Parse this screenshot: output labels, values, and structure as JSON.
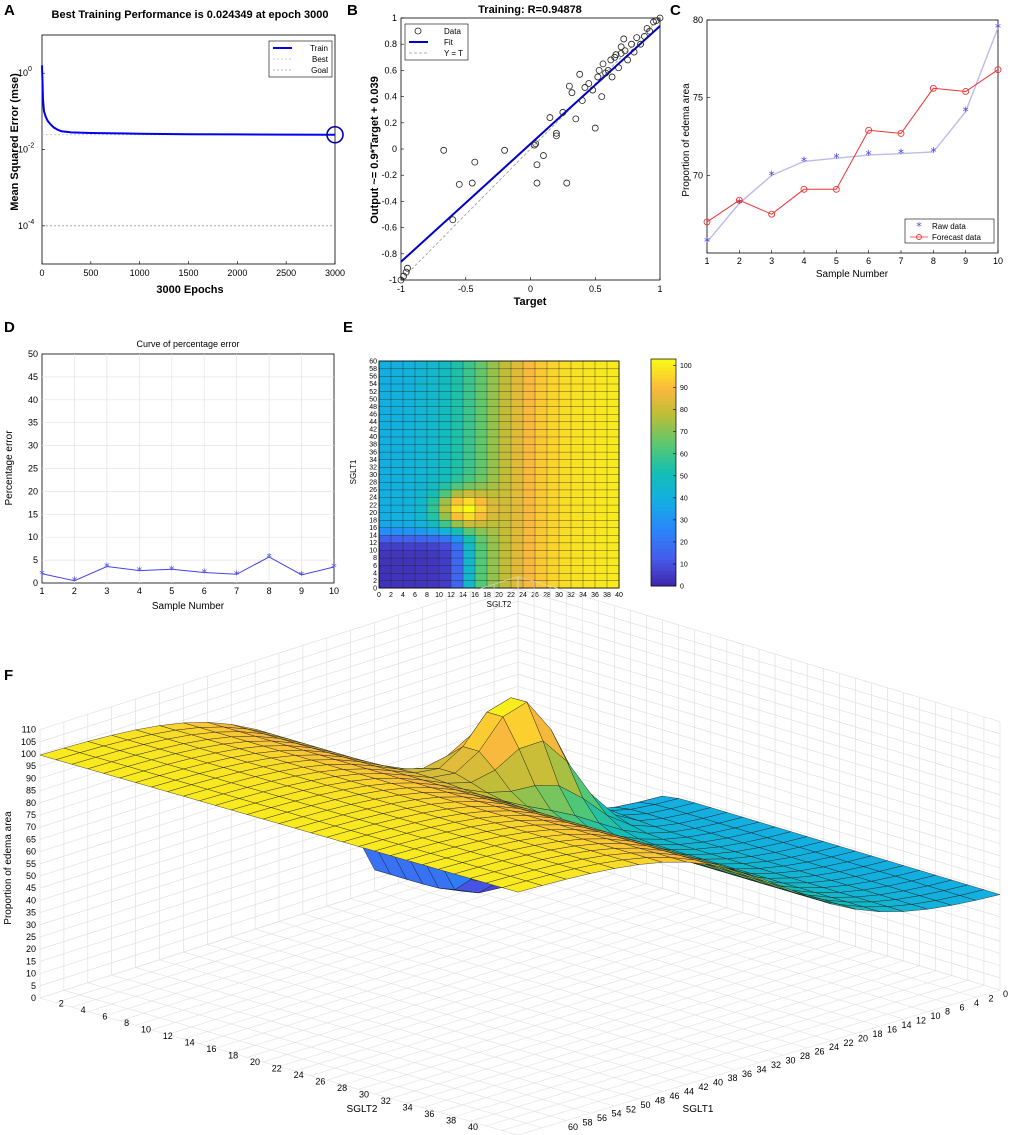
{
  "chart_data": [
    {
      "panel": "A",
      "type": "line",
      "title": "Best Training Performance is 0.024349 at epoch 3000",
      "xlabel": "3000 Epochs",
      "ylabel": "Mean Squared Error  (mse)",
      "xlim": [
        0,
        3000
      ],
      "ylim": [
        1e-05,
        10
      ],
      "yscale": "log",
      "xticks": [
        "0",
        "500",
        "1000",
        "1500",
        "2000",
        "2500",
        "3000"
      ],
      "yticks": [
        {
          "base": "10",
          "exp": "0",
          "value": 1
        },
        {
          "base": "10",
          "exp": "-2",
          "value": 0.01
        },
        {
          "base": "10",
          "exp": "-4",
          "value": 0.0001
        }
      ],
      "series": [
        {
          "name": "Train",
          "color": "#0000ee",
          "x": [
            0,
            5,
            10,
            20,
            40,
            60,
            90,
            120,
            160,
            200,
            300,
            500,
            1000,
            1500,
            2000,
            2500,
            3000
          ],
          "y": [
            1.6,
            0.6,
            0.2,
            0.1,
            0.07,
            0.055,
            0.045,
            0.038,
            0.033,
            0.03,
            0.028,
            0.027,
            0.026,
            0.025,
            0.0248,
            0.0245,
            0.024349
          ]
        },
        {
          "name": "Best",
          "color": "#bbbbbb",
          "value": 0.024349
        },
        {
          "name": "Goal",
          "color": "#999999",
          "value": 0.0001
        }
      ],
      "best_epoch": 3000
    },
    {
      "panel": "B",
      "type": "scatter",
      "title": "Training: R=0.94878",
      "xlabel": "Target",
      "ylabel": "Output ~= 0.9*Target + 0.039",
      "xlim": [
        -1,
        1
      ],
      "ylim": [
        -1,
        1
      ],
      "xticks": [
        "-1",
        "-0.5",
        "0",
        "0.5",
        "1"
      ],
      "yticks": [
        "-1",
        "-0.8",
        "-0.6",
        "-0.4",
        "-0.2",
        "0",
        "0.2",
        "0.4",
        "0.6",
        "0.8",
        "1"
      ],
      "legend": [
        "Data",
        "Fit",
        "Y = T"
      ],
      "fit": {
        "slope": 0.9,
        "intercept": 0.039
      },
      "points": [
        [
          -1,
          -1
        ],
        [
          -0.98,
          -0.97
        ],
        [
          -0.96,
          -0.94
        ],
        [
          -0.95,
          -0.91
        ],
        [
          -0.67,
          -0.01
        ],
        [
          -0.6,
          -0.54
        ],
        [
          -0.55,
          -0.27
        ],
        [
          -0.45,
          -0.26
        ],
        [
          -0.43,
          -0.1
        ],
        [
          -0.2,
          -0.01
        ],
        [
          0.03,
          0.03
        ],
        [
          0.04,
          0.04
        ],
        [
          0.05,
          -0.12
        ],
        [
          0.05,
          -0.26
        ],
        [
          0.1,
          -0.05
        ],
        [
          0.15,
          0.24
        ],
        [
          0.2,
          0.12
        ],
        [
          0.2,
          0.1
        ],
        [
          0.25,
          0.28
        ],
        [
          0.28,
          -0.26
        ],
        [
          0.3,
          0.48
        ],
        [
          0.32,
          0.43
        ],
        [
          0.35,
          0.23
        ],
        [
          0.38,
          0.57
        ],
        [
          0.4,
          0.37
        ],
        [
          0.42,
          0.47
        ],
        [
          0.45,
          0.5
        ],
        [
          0.48,
          0.45
        ],
        [
          0.5,
          0.16
        ],
        [
          0.52,
          0.55
        ],
        [
          0.53,
          0.6
        ],
        [
          0.55,
          0.4
        ],
        [
          0.56,
          0.65
        ],
        [
          0.58,
          0.58
        ],
        [
          0.6,
          0.6
        ],
        [
          0.62,
          0.68
        ],
        [
          0.63,
          0.55
        ],
        [
          0.65,
          0.7
        ],
        [
          0.66,
          0.72
        ],
        [
          0.68,
          0.62
        ],
        [
          0.7,
          0.78
        ],
        [
          0.7,
          0.73
        ],
        [
          0.72,
          0.84
        ],
        [
          0.73,
          0.75
        ],
        [
          0.75,
          0.68
        ],
        [
          0.78,
          0.8
        ],
        [
          0.8,
          0.74
        ],
        [
          0.82,
          0.85
        ],
        [
          0.85,
          0.8
        ],
        [
          0.88,
          0.86
        ],
        [
          0.9,
          0.92
        ],
        [
          0.92,
          0.9
        ],
        [
          0.95,
          0.97
        ],
        [
          0.97,
          0.98
        ],
        [
          1,
          1
        ]
      ]
    },
    {
      "panel": "C",
      "type": "line",
      "xlabel": "Sample Number",
      "ylabel": "Proportion of edema area",
      "categories": [
        "1",
        "2",
        "3",
        "4",
        "5",
        "6",
        "7",
        "8",
        "9",
        "10"
      ],
      "ylim": [
        65,
        80
      ],
      "yticks": [
        "70",
        "75",
        "80"
      ],
      "series": [
        {
          "name": "Raw data",
          "color": "#4444ee",
          "values": [
            65.7,
            68.2,
            70.0,
            70.9,
            71.1,
            71.3,
            71.4,
            71.5,
            74.1,
            79.5
          ]
        },
        {
          "name": "Forecast data",
          "color": "#ee3333",
          "values": [
            67.0,
            68.4,
            67.5,
            69.1,
            69.1,
            72.9,
            72.7,
            75.6,
            75.4,
            76.8
          ]
        }
      ]
    },
    {
      "panel": "D",
      "type": "line",
      "title": "Curve of percentage error",
      "xlabel": "Sample Number",
      "ylabel": "Percentage error",
      "categories": [
        "1",
        "2",
        "3",
        "4",
        "5",
        "6",
        "7",
        "8",
        "9",
        "10"
      ],
      "ylim": [
        0,
        50
      ],
      "yticks": [
        "0",
        "5",
        "10",
        "15",
        "20",
        "25",
        "30",
        "35",
        "40",
        "45",
        "50"
      ],
      "series": [
        {
          "name": "Percentage error",
          "color": "#4444ee",
          "values": [
            2.0,
            0.5,
            3.6,
            2.7,
            3.0,
            2.3,
            1.9,
            5.7,
            1.8,
            3.5
          ]
        }
      ]
    },
    {
      "panel": "E",
      "type": "heatmap",
      "xlabel": "SGLT2",
      "ylabel": "SGLT1",
      "x_range": [
        0,
        40
      ],
      "y_range": [
        0,
        60
      ],
      "x_ticks": [
        "0",
        "2",
        "4",
        "6",
        "8",
        "10",
        "12",
        "14",
        "16",
        "18",
        "20",
        "22",
        "24",
        "26",
        "28",
        "30",
        "32",
        "34",
        "36",
        "38",
        "40"
      ],
      "y_ticks": [
        "0",
        "2",
        "4",
        "6",
        "8",
        "10",
        "12",
        "14",
        "16",
        "18",
        "20",
        "22",
        "24",
        "26",
        "28",
        "30",
        "32",
        "34",
        "36",
        "38",
        "40",
        "42",
        "44",
        "46",
        "48",
        "50",
        "52",
        "54",
        "56",
        "58",
        "60"
      ],
      "colorbar_ticks": [
        "0",
        "10",
        "20",
        "30",
        "40",
        "50",
        "60",
        "70",
        "80",
        "90",
        "100"
      ],
      "value_range": [
        0,
        103
      ],
      "description": "Proportion of edema area surface; low near SGLT2 < 14, SGLT1 < 14; peak ~85 near SGLT2 14, SGLT1 21; rises to ~100 toward high SGLT2"
    },
    {
      "panel": "F",
      "type": "surface",
      "xlabel": "SGLT2",
      "ylabel": "SGLT1",
      "zlabel": "Proportion of edema area",
      "z_ticks": [
        "0",
        "5",
        "10",
        "15",
        "20",
        "25",
        "30",
        "35",
        "40",
        "45",
        "50",
        "55",
        "60",
        "65",
        "70",
        "75",
        "80",
        "85",
        "90",
        "95",
        "100",
        "105",
        "110"
      ],
      "sglt2_ticks": [
        "2",
        "4",
        "6",
        "8",
        "10",
        "12",
        "14",
        "16",
        "18",
        "20",
        "22",
        "24",
        "26",
        "28",
        "30",
        "32",
        "34",
        "36",
        "38",
        "40"
      ],
      "sglt1_ticks": [
        "0",
        "2",
        "4",
        "6",
        "8",
        "10",
        "12",
        "14",
        "16",
        "18",
        "20",
        "22",
        "24",
        "26",
        "28",
        "30",
        "32",
        "34",
        "36",
        "38",
        "40",
        "42",
        "44",
        "46",
        "48",
        "50",
        "52",
        "54",
        "56",
        "58",
        "60"
      ]
    }
  ],
  "panel_labels": [
    "A",
    "B",
    "C",
    "D",
    "E",
    "F"
  ],
  "colors": {
    "parula_low": "#3e26a8",
    "parula_mid": "#13beb7",
    "parula_high": "#f9fb15"
  }
}
